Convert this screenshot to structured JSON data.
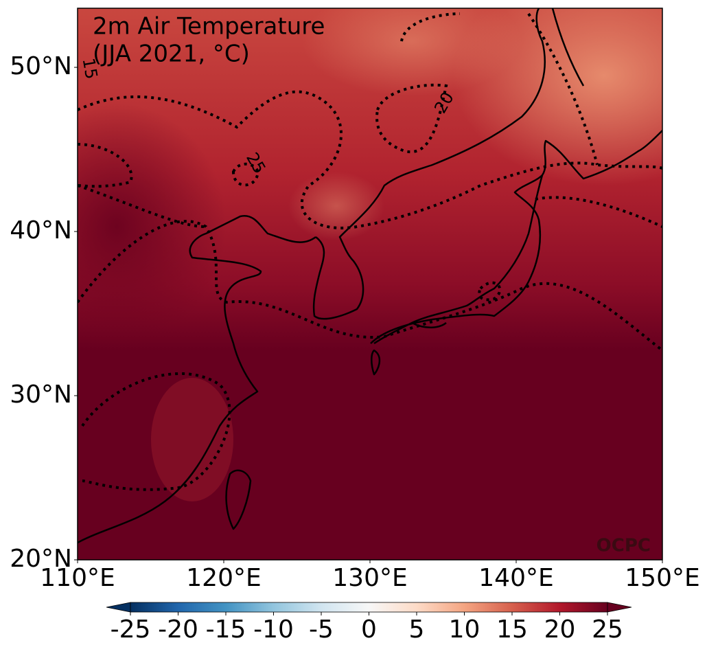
{
  "map": {
    "title": [
      "2m Air Temperature",
      "(JJA 2021, °C)"
    ],
    "xlim": [
      110,
      150
    ],
    "ylim": [
      20,
      53.6
    ],
    "xticks": [
      {
        "value": 110,
        "label": "110°E"
      },
      {
        "value": 120,
        "label": "120°E"
      },
      {
        "value": 130,
        "label": "130°E"
      },
      {
        "value": 140,
        "label": "140°E"
      },
      {
        "value": 150,
        "label": "150°E"
      }
    ],
    "yticks": [
      {
        "value": 20,
        "label": "20°N"
      },
      {
        "value": 30,
        "label": "30°N"
      },
      {
        "value": 40,
        "label": "40°N"
      },
      {
        "value": 50,
        "label": "50°N"
      }
    ],
    "contour_labels": [
      15,
      20,
      25
    ],
    "watermark": "OCPC",
    "colorbar": {
      "clim": [
        -25,
        25
      ],
      "ticks": [
        -25,
        -20,
        -15,
        -10,
        -5,
        0,
        5,
        10,
        15,
        20,
        25
      ],
      "colors": [
        "#053061",
        "#2166ac",
        "#4393c3",
        "#92c5de",
        "#d1e5f0",
        "#f7f7f7",
        "#fddbc7",
        "#f4a582",
        "#d6604d",
        "#b2182b",
        "#67001f"
      ]
    }
  }
}
